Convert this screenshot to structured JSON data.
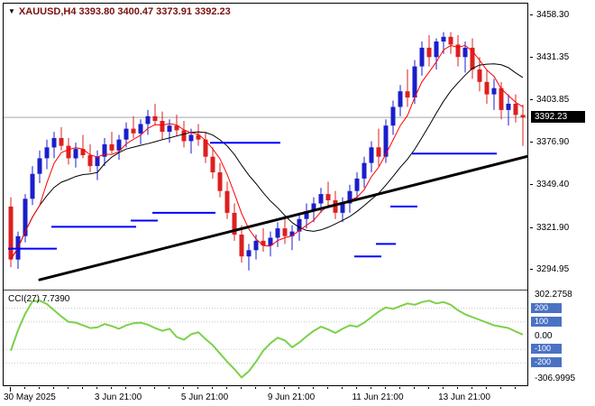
{
  "header": {
    "dropdown_icon": "▼",
    "title": "XAUUSD,H4 3393.80 3400.47 3373.91 3392.23",
    "symbol": "XAUUSD",
    "timeframe": "H4",
    "ohlc": {
      "open": "3393.80",
      "high": "3400.47",
      "low": "3373.91",
      "close": "3392.23"
    }
  },
  "indicator_header": "CCI(27) 7.7390",
  "colors": {
    "background": "#ffffff",
    "frame": "#000000",
    "bull": "#1a1ecb",
    "bear": "#dd1f1f",
    "title": "#7a0f0f",
    "price_line": "#a6a6a6",
    "current_badge_bg": "#000000",
    "current_badge_text": "#ffffff",
    "level_badge": "#4a72c4",
    "cci_line": "#7bd148",
    "step_line": "#0000ff",
    "ma_fast": "#ff0000",
    "ma_slow": "#000000",
    "trendline": "#000000"
  },
  "y_axis": {
    "price_labels": [
      {
        "price": 3458.3,
        "text": "3458.30"
      },
      {
        "price": 3431.35,
        "text": "3431.35"
      },
      {
        "price": 3403.85,
        "text": "3403.85"
      },
      {
        "price": 3376.9,
        "text": "3376.90"
      },
      {
        "price": 3349.4,
        "text": "3349.40"
      },
      {
        "price": 3321.9,
        "text": "3321.90"
      },
      {
        "price": 3294.95,
        "text": "3294.95"
      }
    ],
    "current": {
      "price": 3392.23,
      "text": "3392.23"
    }
  },
  "cci_axis": {
    "top": {
      "value": 302.2758,
      "text": "302.2758"
    },
    "bottom": {
      "value": -306.9995,
      "text": "-306.9995"
    },
    "levels": [
      {
        "value": 200,
        "text": "200",
        "badge": true
      },
      {
        "value": 100,
        "text": "100",
        "badge": true
      },
      {
        "value": 0,
        "text": "0.00",
        "badge": false
      },
      {
        "value": -100,
        "text": "-100",
        "badge": true
      },
      {
        "value": -200,
        "text": "-200",
        "badge": true
      }
    ]
  },
  "x_axis": {
    "labels": [
      {
        "index": 0,
        "text": "30 May 2025"
      },
      {
        "index": 15,
        "text": "3 Jun 21:00"
      },
      {
        "index": 27,
        "text": "5 Jun 21:00"
      },
      {
        "index": 39,
        "text": "9 Jun 21:00"
      },
      {
        "index": 51,
        "text": "11 Jun 21:00"
      },
      {
        "index": 63,
        "text": "13 Jun 21:00"
      }
    ]
  },
  "chart_data": {
    "type": "candlestick",
    "symbol": "XAUUSD",
    "timeframe": "H4",
    "ylim": [
      3294.95,
      3458.3
    ],
    "candles": [
      [
        3335,
        3341,
        3296,
        3301
      ],
      [
        3301,
        3319,
        3295,
        3316
      ],
      [
        3316,
        3343,
        3312,
        3340
      ],
      [
        3340,
        3361,
        3336,
        3356
      ],
      [
        3356,
        3371,
        3350,
        3366
      ],
      [
        3366,
        3378,
        3359,
        3373
      ],
      [
        3373,
        3383,
        3366,
        3379
      ],
      [
        3379,
        3386,
        3371,
        3374
      ],
      [
        3374,
        3379,
        3362,
        3366
      ],
      [
        3366,
        3376,
        3360,
        3372
      ],
      [
        3372,
        3381,
        3366,
        3368
      ],
      [
        3368,
        3375,
        3357,
        3361
      ],
      [
        3361,
        3371,
        3352,
        3367
      ],
      [
        3367,
        3379,
        3361,
        3375
      ],
      [
        3375,
        3383,
        3369,
        3371
      ],
      [
        3371,
        3381,
        3365,
        3378
      ],
      [
        3378,
        3389,
        3373,
        3385
      ],
      [
        3385,
        3393,
        3379,
        3382
      ],
      [
        3382,
        3391,
        3375,
        3388
      ],
      [
        3388,
        3397,
        3381,
        3393
      ],
      [
        3393,
        3401,
        3387,
        3390
      ],
      [
        3390,
        3396,
        3378,
        3383
      ],
      [
        3383,
        3391,
        3376,
        3387
      ],
      [
        3387,
        3394,
        3380,
        3384
      ],
      [
        3384,
        3390,
        3373,
        3377
      ],
      [
        3377,
        3385,
        3369,
        3381
      ],
      [
        3381,
        3388,
        3374,
        3378
      ],
      [
        3378,
        3383,
        3363,
        3367
      ],
      [
        3367,
        3373,
        3353,
        3357
      ],
      [
        3357,
        3363,
        3341,
        3345
      ],
      [
        3345,
        3351,
        3327,
        3331
      ],
      [
        3331,
        3337,
        3313,
        3317
      ],
      [
        3317,
        3323,
        3299,
        3303
      ],
      [
        3303,
        3311,
        3294,
        3307
      ],
      [
        3307,
        3317,
        3301,
        3313
      ],
      [
        3313,
        3321,
        3306,
        3310
      ],
      [
        3310,
        3319,
        3303,
        3315
      ],
      [
        3315,
        3325,
        3309,
        3321
      ],
      [
        3321,
        3329,
        3311,
        3316
      ],
      [
        3316,
        3323,
        3307,
        3319
      ],
      [
        3319,
        3331,
        3313,
        3327
      ],
      [
        3327,
        3337,
        3321,
        3332
      ],
      [
        3332,
        3341,
        3325,
        3337
      ],
      [
        3337,
        3347,
        3331,
        3343
      ],
      [
        3343,
        3351,
        3335,
        3339
      ],
      [
        3339,
        3345,
        3327,
        3331
      ],
      [
        3331,
        3341,
        3325,
        3337
      ],
      [
        3337,
        3349,
        3331,
        3345
      ],
      [
        3345,
        3357,
        3339,
        3353
      ],
      [
        3353,
        3367,
        3347,
        3363
      ],
      [
        3363,
        3377,
        3357,
        3373
      ],
      [
        3373,
        3385,
        3361,
        3367
      ],
      [
        3367,
        3391,
        3363,
        3387
      ],
      [
        3387,
        3403,
        3381,
        3399
      ],
      [
        3399,
        3413,
        3393,
        3409
      ],
      [
        3409,
        3423,
        3399,
        3405
      ],
      [
        3405,
        3429,
        3401,
        3425
      ],
      [
        3425,
        3441,
        3419,
        3437
      ],
      [
        3437,
        3445,
        3425,
        3431
      ],
      [
        3431,
        3443,
        3423,
        3441
      ],
      [
        3441,
        3447,
        3433,
        3444
      ],
      [
        3444,
        3447,
        3433,
        3439
      ],
      [
        3439,
        3445,
        3425,
        3431
      ],
      [
        3431,
        3441,
        3421,
        3437
      ],
      [
        3437,
        3443,
        3417,
        3423
      ],
      [
        3423,
        3431,
        3409,
        3415
      ],
      [
        3415,
        3423,
        3401,
        3407
      ],
      [
        3407,
        3417,
        3397,
        3411
      ],
      [
        3411,
        3415,
        3391,
        3397
      ],
      [
        3397,
        3407,
        3387,
        3401
      ],
      [
        3401,
        3407,
        3389,
        3393.8
      ],
      [
        3393.8,
        3400.47,
        3373.91,
        3392.23
      ]
    ],
    "overlays": {
      "ma_fast": {
        "type": "sma",
        "period": 5,
        "color": "#ff0000"
      },
      "ma_slow": {
        "type": "sma",
        "period": 13,
        "color": "#000000"
      },
      "step_line": {
        "color": "#0000ff",
        "segments": [
          [
            0,
            6,
            3308
          ],
          [
            6,
            17,
            3322
          ],
          [
            17,
            20,
            3326
          ],
          [
            20,
            28,
            3331
          ],
          [
            28,
            37,
            3376
          ],
          [
            48,
            51,
            3303
          ],
          [
            51,
            53,
            3311
          ],
          [
            53,
            56,
            3335
          ],
          [
            56,
            67,
            3369
          ]
        ]
      },
      "trendline": {
        "color": "#000000",
        "width": 3,
        "from": {
          "index": 4,
          "price": 3288
        },
        "to": {
          "index": 74,
          "price": 3370
        }
      },
      "price_line": 3392.23
    },
    "indicator": {
      "name": "CCI",
      "period": 27,
      "current_value": 7.739,
      "color": "#7bd148",
      "levels": [
        200,
        100,
        -100,
        -200
      ],
      "range": [
        -306.9995,
        302.2758
      ],
      "values": [
        -110,
        40,
        160,
        250,
        255,
        230,
        185,
        140,
        100,
        95,
        75,
        55,
        60,
        85,
        70,
        50,
        75,
        90,
        95,
        80,
        55,
        35,
        50,
        -10,
        -30,
        10,
        25,
        -25,
        -70,
        -130,
        -190,
        -245,
        -305,
        -260,
        -190,
        -110,
        -55,
        -15,
        -35,
        -85,
        -50,
        -5,
        35,
        65,
        45,
        20,
        50,
        75,
        65,
        95,
        135,
        175,
        205,
        195,
        215,
        235,
        225,
        245,
        255,
        235,
        245,
        225,
        185,
        155,
        135,
        115,
        95,
        75,
        65,
        55,
        30,
        7.739
      ]
    }
  }
}
